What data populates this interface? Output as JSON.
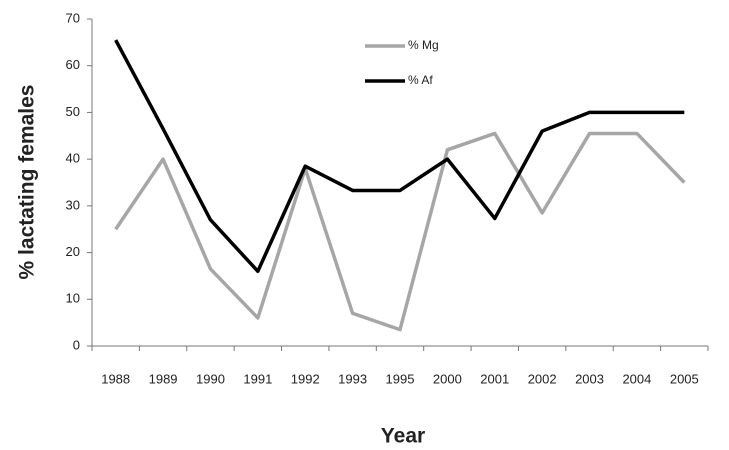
{
  "chart_data": {
    "type": "line",
    "x_label": "Year",
    "y_label": "% lactating females",
    "categories": [
      "1988",
      "1989",
      "1990",
      "1991",
      "1992",
      "1993",
      "1995",
      "2000",
      "2001",
      "2002",
      "2003",
      "2004",
      "2005"
    ],
    "series": [
      {
        "name": "% Mg",
        "color": "#a6a6a6",
        "values": [
          25,
          40,
          16.5,
          6,
          38,
          7,
          3.5,
          42,
          45.5,
          28.5,
          45.5,
          45.5,
          35
        ]
      },
      {
        "name": "% Af",
        "color": "#000000",
        "values": [
          65.5,
          46.5,
          27,
          16,
          38.5,
          33.3,
          33.3,
          40,
          27.3,
          46,
          50,
          50,
          50
        ]
      }
    ],
    "ylim": [
      0,
      70
    ],
    "yticks": [
      0,
      10,
      20,
      30,
      40,
      50,
      60,
      70
    ],
    "grid": false,
    "legend": "top"
  }
}
